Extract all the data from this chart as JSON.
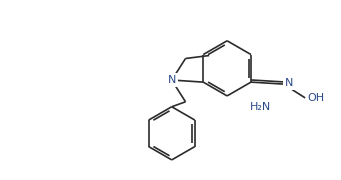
{
  "bg_color": "#ffffff",
  "line_color": "#2b2b2b",
  "label_color": "#5a4a00",
  "label_color_atom": "#2b4a8a",
  "figsize": [
    3.41,
    1.8
  ],
  "dpi": 100,
  "lw": 1.2,
  "ring_r": 28,
  "xlim": [
    0,
    341
  ],
  "ylim": [
    0,
    180
  ]
}
